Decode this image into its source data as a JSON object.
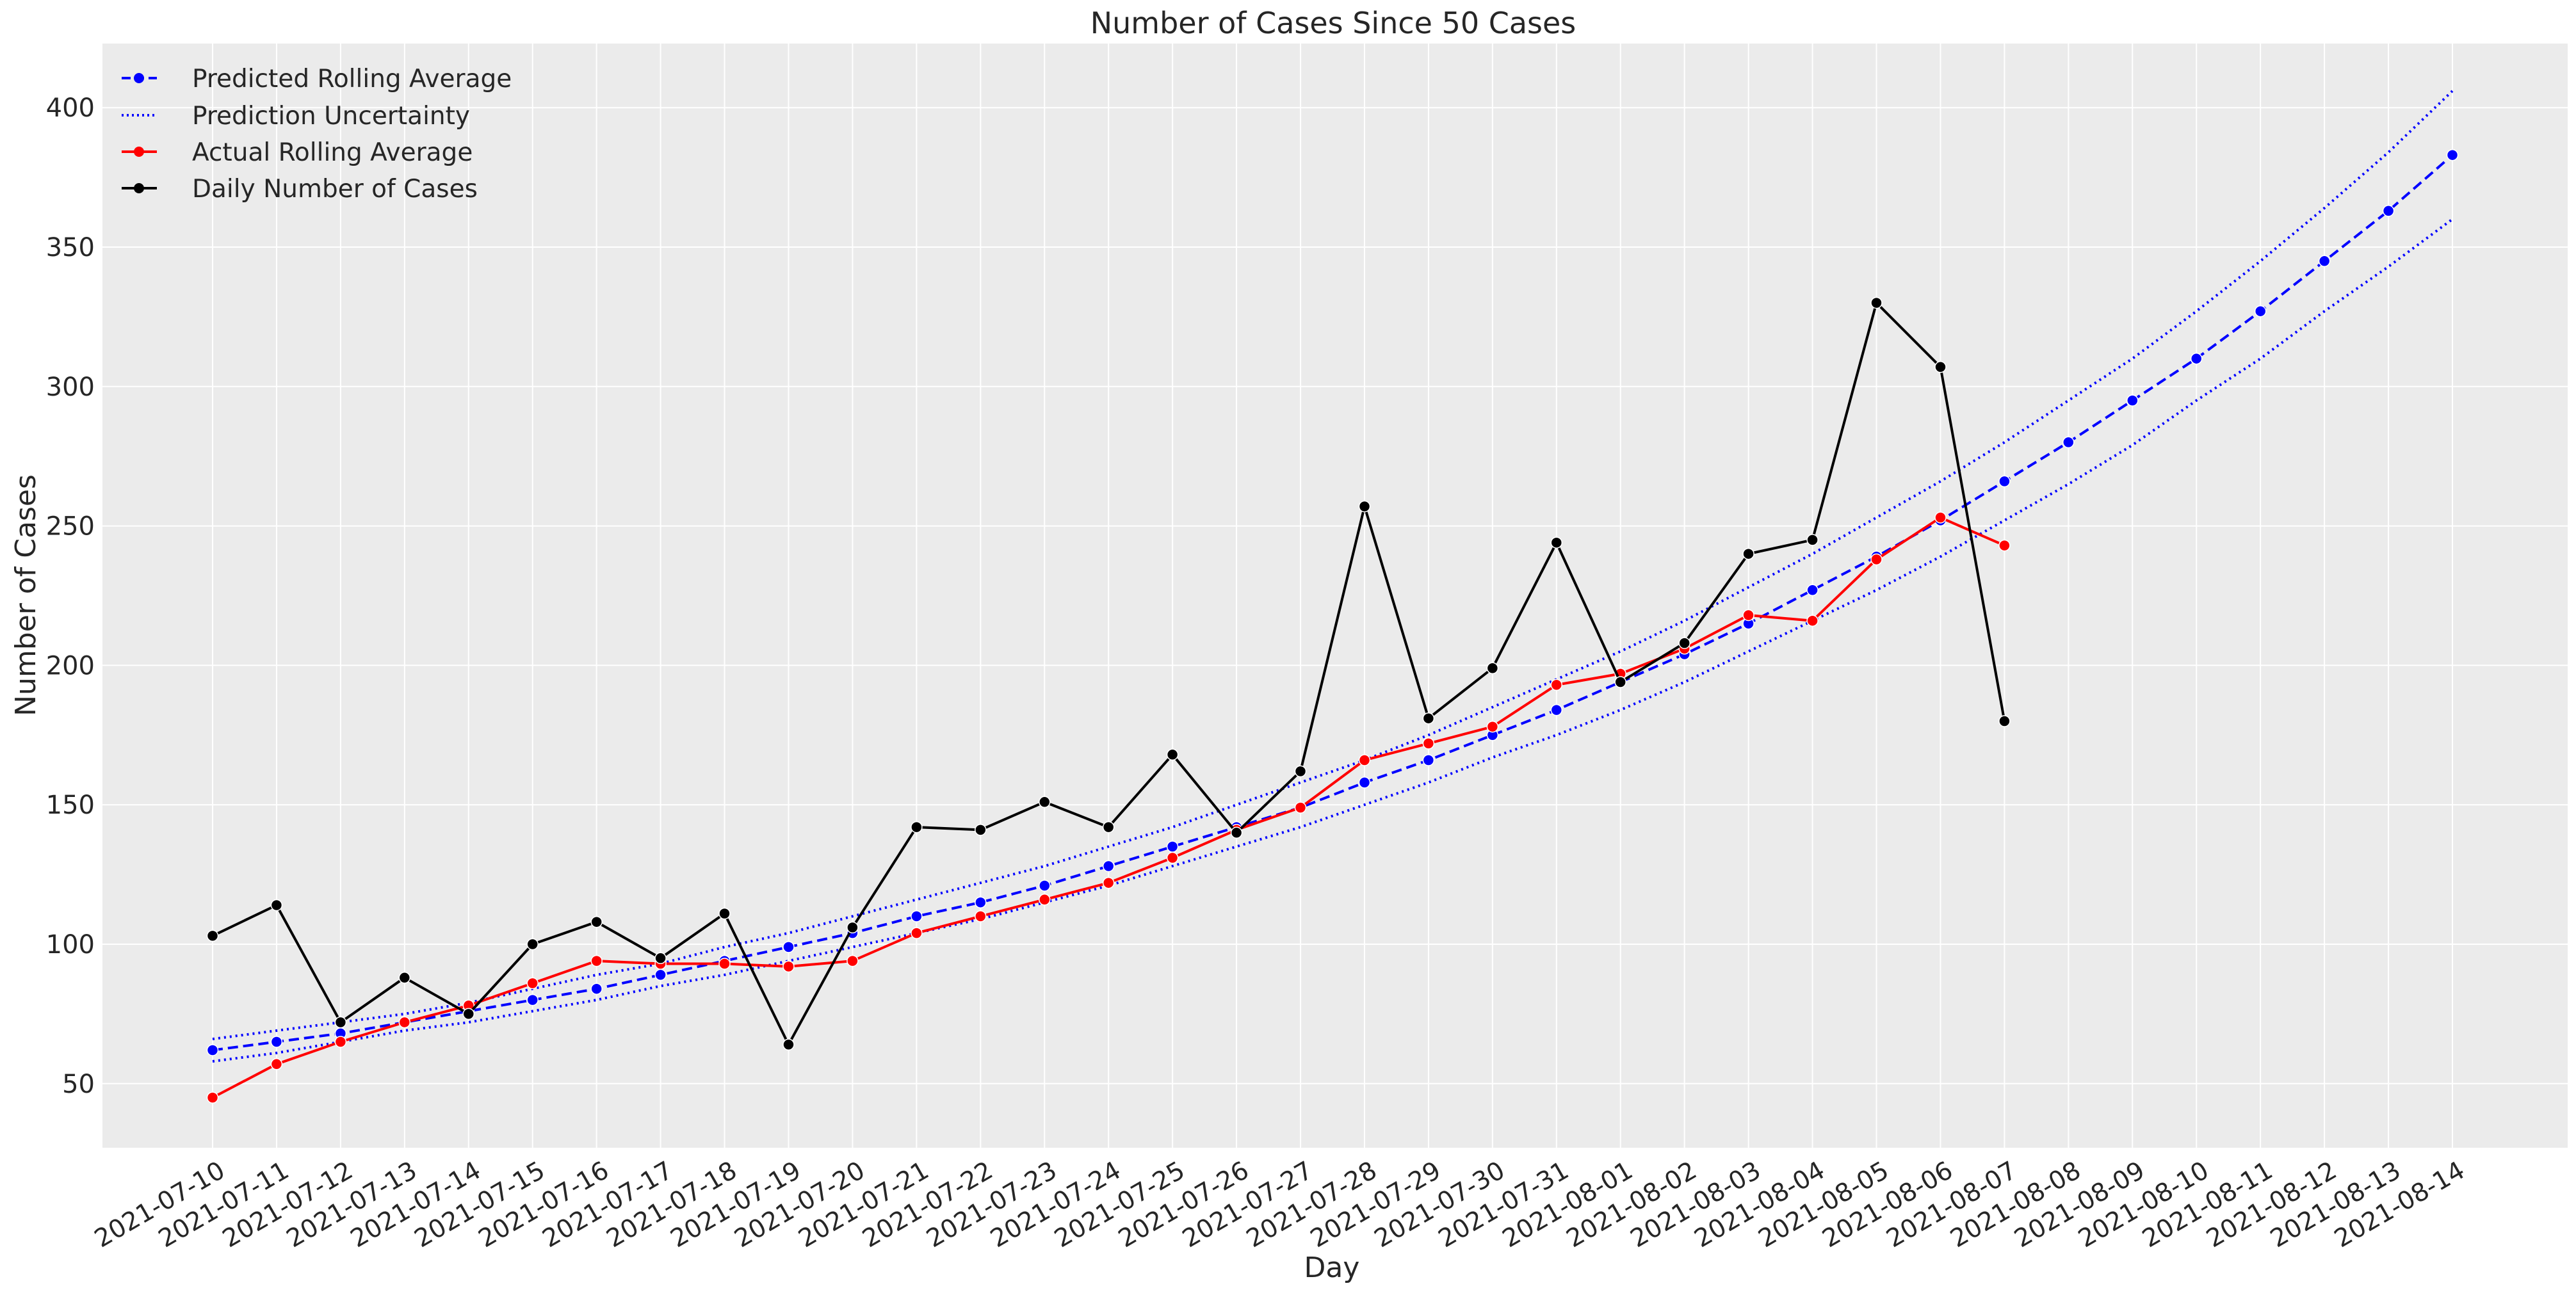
{
  "chart_data": {
    "type": "line",
    "title": "Number of Cases Since 50 Cases",
    "xlabel": "Day",
    "ylabel": "Number of Cases",
    "ylim": [
      27,
      423
    ],
    "yticks": [
      50,
      100,
      150,
      200,
      250,
      300,
      350,
      400
    ],
    "grid": true,
    "legend_position": "top-left",
    "x": [
      "2021-07-10",
      "2021-07-11",
      "2021-07-12",
      "2021-07-13",
      "2021-07-14",
      "2021-07-15",
      "2021-07-16",
      "2021-07-17",
      "2021-07-18",
      "2021-07-19",
      "2021-07-20",
      "2021-07-21",
      "2021-07-22",
      "2021-07-23",
      "2021-07-24",
      "2021-07-25",
      "2021-07-26",
      "2021-07-27",
      "2021-07-28",
      "2021-07-29",
      "2021-07-30",
      "2021-07-31",
      "2021-08-01",
      "2021-08-02",
      "2021-08-03",
      "2021-08-04",
      "2021-08-05",
      "2021-08-06",
      "2021-08-07",
      "2021-08-08",
      "2021-08-09",
      "2021-08-10",
      "2021-08-11",
      "2021-08-12",
      "2021-08-13",
      "2021-08-14"
    ],
    "series": [
      {
        "name": "Predicted Rolling Average",
        "color": "#0000ff",
        "style": "dashed",
        "marker": true,
        "values": [
          62,
          65,
          68,
          72,
          76,
          80,
          84,
          89,
          94,
          99,
          104,
          110,
          115,
          121,
          128,
          135,
          142,
          149,
          158,
          166,
          175,
          184,
          194,
          204,
          215,
          227,
          239,
          252,
          266,
          280,
          295,
          310,
          327,
          345,
          363,
          383
        ]
      },
      {
        "name": "Prediction Uncertainty",
        "color": "#0000ff",
        "style": "dotted",
        "marker": false,
        "values": [
          66,
          69,
          72,
          75,
          79,
          84,
          89,
          93,
          99,
          104,
          110,
          116,
          122,
          128,
          135,
          142,
          150,
          158,
          166,
          175,
          185,
          195,
          205,
          216,
          228,
          240,
          253,
          266,
          280,
          295,
          310,
          327,
          345,
          364,
          384,
          406
        ]
      },
      {
        "name": "",
        "color": "#0000ff",
        "style": "dotted",
        "marker": false,
        "values": [
          58,
          61,
          65,
          69,
          72,
          76,
          80,
          85,
          89,
          94,
          99,
          104,
          109,
          115,
          121,
          128,
          135,
          142,
          150,
          158,
          167,
          175,
          184,
          194,
          205,
          216,
          227,
          239,
          252,
          265,
          279,
          295,
          310,
          327,
          343,
          360
        ]
      },
      {
        "name": "Actual Rolling Average",
        "color": "#ff0000",
        "style": "solid",
        "marker": true,
        "values": [
          45,
          57,
          65,
          72,
          78,
          86,
          94,
          93,
          93,
          92,
          94,
          104,
          110,
          116,
          122,
          131,
          141,
          149,
          166,
          172,
          178,
          193,
          197,
          206,
          218,
          216,
          238,
          253,
          243,
          null,
          null,
          null,
          null,
          null,
          null,
          null
        ]
      },
      {
        "name": "Daily Number of Cases",
        "color": "#000000",
        "style": "solid",
        "marker": true,
        "values": [
          103,
          114,
          72,
          88,
          75,
          100,
          108,
          95,
          111,
          64,
          106,
          142,
          141,
          151,
          142,
          168,
          140,
          162,
          257,
          181,
          199,
          244,
          194,
          208,
          240,
          245,
          330,
          307,
          180,
          null,
          null,
          null,
          null,
          null,
          null,
          null
        ]
      }
    ]
  }
}
